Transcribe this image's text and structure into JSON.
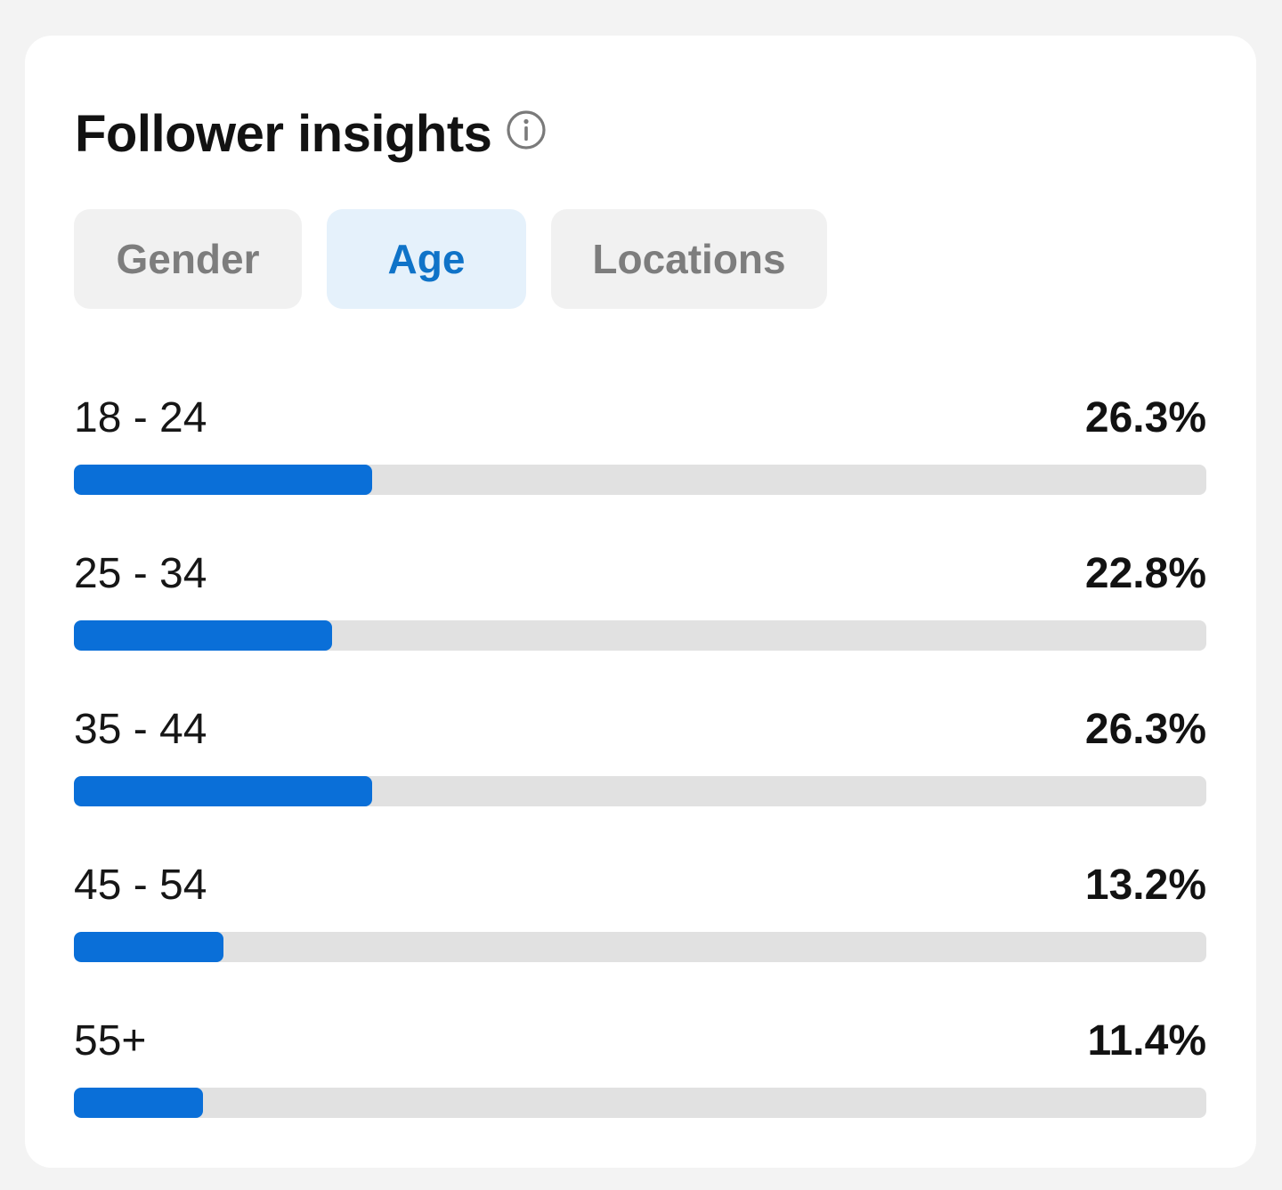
{
  "header": {
    "title": "Follower insights",
    "info_icon": "info-circle-icon"
  },
  "tabs": [
    {
      "label": "Gender",
      "active": false
    },
    {
      "label": "Age",
      "active": true
    },
    {
      "label": "Locations",
      "active": false
    }
  ],
  "age_breakdown": [
    {
      "label": "18 - 24",
      "value_text": "26.3%",
      "fraction": 0.263
    },
    {
      "label": "25 - 34",
      "value_text": "22.8%",
      "fraction": 0.228
    },
    {
      "label": "35 - 44",
      "value_text": "26.3%",
      "fraction": 0.263
    },
    {
      "label": "45 - 54",
      "value_text": "13.2%",
      "fraction": 0.132
    },
    {
      "label": "55+",
      "value_text": "11.4%",
      "fraction": 0.114
    }
  ],
  "colors": {
    "accent": "#0a6fd8",
    "active_tab_bg": "#e5f1fb",
    "active_tab_text": "#0f73c8",
    "track": "#e1e1e1"
  }
}
